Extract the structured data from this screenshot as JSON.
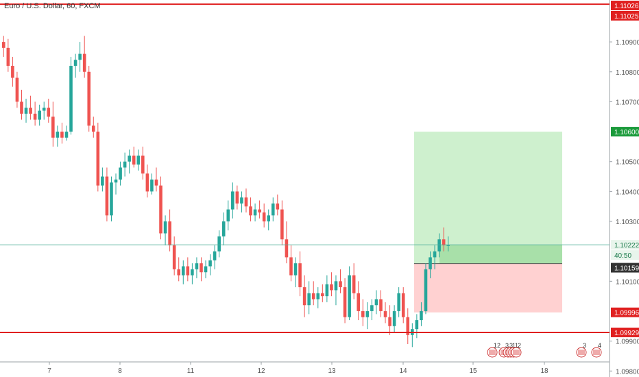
{
  "header": {
    "symbol_title": "Euro / U.S. Dollar, 60, FXCM"
  },
  "colors": {
    "up": "#26a69a",
    "down": "#ef5350",
    "level_line": "#e02020",
    "target_zone": "#c9eec9",
    "target_zone_inner": "#9fdca0",
    "stop_zone": "#ffcccc",
    "price_line": "#4caf9a"
  },
  "chart_data": {
    "type": "candlestick",
    "ylim": [
      1.0978,
      1.1104
    ],
    "y_ticks": [
      "1.10900",
      "1.10800",
      "1.10700",
      "1.10500",
      "1.10400",
      "1.10300",
      "1.10100",
      "1.09900",
      "1.09800"
    ],
    "x_ticks": [
      "7",
      "8",
      "11",
      "12",
      "13",
      "14",
      "15",
      "18"
    ],
    "price_tags": [
      {
        "label": "1.11026",
        "value": 1.11026,
        "kind": "level"
      },
      {
        "label": "1.11025",
        "value": 1.11025,
        "kind": "level"
      },
      {
        "label": "1.10600",
        "value": 1.106,
        "kind": "target"
      },
      {
        "label": "1.10222",
        "value": 1.10222,
        "kind": "last"
      },
      {
        "label": "40:50",
        "value": 1.1019,
        "kind": "countdown"
      },
      {
        "label": "1.10159",
        "value": 1.10159,
        "kind": "entry"
      },
      {
        "label": "1.09996",
        "value": 1.09996,
        "kind": "stop"
      },
      {
        "label": "1.09929",
        "value": 1.09929,
        "kind": "level"
      }
    ],
    "horizontal_levels": [
      1.11026,
      1.09929
    ],
    "position": {
      "entry": 1.10159,
      "target": 1.106,
      "stop": 1.09996
    },
    "event_labels": [
      "12",
      "3",
      "3",
      "1",
      "1",
      "2",
      "3",
      "4"
    ],
    "candles": [
      [
        1.109,
        1.1092,
        1.1085,
        1.1088
      ],
      [
        1.1088,
        1.1091,
        1.108,
        1.1082
      ],
      [
        1.1082,
        1.1085,
        1.1075,
        1.1078
      ],
      [
        1.1078,
        1.108,
        1.1068,
        1.107
      ],
      [
        1.107,
        1.1074,
        1.1064,
        1.1066
      ],
      [
        1.1066,
        1.1071,
        1.1063,
        1.1068
      ],
      [
        1.1068,
        1.1072,
        1.1064,
        1.1066
      ],
      [
        1.1066,
        1.107,
        1.1062,
        1.1064
      ],
      [
        1.1064,
        1.1069,
        1.1062,
        1.1067
      ],
      [
        1.1067,
        1.107,
        1.1064,
        1.1068
      ],
      [
        1.1068,
        1.1071,
        1.1063,
        1.1065
      ],
      [
        1.1065,
        1.107,
        1.1055,
        1.1058
      ],
      [
        1.1058,
        1.1062,
        1.1055,
        1.106
      ],
      [
        1.106,
        1.1063,
        1.1056,
        1.1058
      ],
      [
        1.1058,
        1.1062,
        1.1057,
        1.106
      ],
      [
        1.106,
        1.1085,
        1.1059,
        1.1082
      ],
      [
        1.1082,
        1.1086,
        1.1078,
        1.1084
      ],
      [
        1.1084,
        1.109,
        1.108,
        1.1086
      ],
      [
        1.1086,
        1.1092,
        1.1078,
        1.108
      ],
      [
        1.108,
        1.1082,
        1.106,
        1.1062
      ],
      [
        1.1062,
        1.1065,
        1.1058,
        1.106
      ],
      [
        1.106,
        1.1063,
        1.104,
        1.1042
      ],
      [
        1.1042,
        1.1048,
        1.104,
        1.1045
      ],
      [
        1.1045,
        1.1048,
        1.103,
        1.1032
      ],
      [
        1.1032,
        1.1045,
        1.103,
        1.1043
      ],
      [
        1.1043,
        1.1046,
        1.1039,
        1.1044
      ],
      [
        1.1044,
        1.105,
        1.1042,
        1.1048
      ],
      [
        1.1048,
        1.1053,
        1.1045,
        1.105
      ],
      [
        1.105,
        1.1054,
        1.1046,
        1.1052
      ],
      [
        1.1052,
        1.1055,
        1.1048,
        1.1049
      ],
      [
        1.1049,
        1.1054,
        1.1047,
        1.1052
      ],
      [
        1.1052,
        1.1055,
        1.1044,
        1.1046
      ],
      [
        1.1046,
        1.1049,
        1.1038,
        1.104
      ],
      [
        1.104,
        1.1046,
        1.1039,
        1.1044
      ],
      [
        1.1044,
        1.1048,
        1.104,
        1.1042
      ],
      [
        1.1042,
        1.1045,
        1.1024,
        1.1026
      ],
      [
        1.1026,
        1.1032,
        1.1022,
        1.103
      ],
      [
        1.103,
        1.1034,
        1.102,
        1.1022
      ],
      [
        1.1022,
        1.1025,
        1.1012,
        1.1014
      ],
      [
        1.1014,
        1.1018,
        1.101,
        1.1012
      ],
      [
        1.1012,
        1.1017,
        1.1009,
        1.1015
      ],
      [
        1.1015,
        1.1018,
        1.101,
        1.1012
      ],
      [
        1.1012,
        1.1016,
        1.1009,
        1.1014
      ],
      [
        1.1014,
        1.1018,
        1.1011,
        1.1016
      ],
      [
        1.1016,
        1.1018,
        1.101,
        1.1013
      ],
      [
        1.1013,
        1.1017,
        1.1011,
        1.1015
      ],
      [
        1.1015,
        1.1019,
        1.1012,
        1.1017
      ],
      [
        1.1017,
        1.1022,
        1.1014,
        1.102
      ],
      [
        1.102,
        1.1027,
        1.1018,
        1.1025
      ],
      [
        1.1025,
        1.1033,
        1.1022,
        1.103
      ],
      [
        1.103,
        1.1037,
        1.1027,
        1.1034
      ],
      [
        1.1034,
        1.1043,
        1.1031,
        1.104
      ],
      [
        1.104,
        1.1042,
        1.1034,
        1.1036
      ],
      [
        1.1036,
        1.104,
        1.1033,
        1.1038
      ],
      [
        1.1038,
        1.1041,
        1.1033,
        1.1035
      ],
      [
        1.1035,
        1.1038,
        1.103,
        1.1032
      ],
      [
        1.1032,
        1.1036,
        1.103,
        1.1034
      ],
      [
        1.1034,
        1.1037,
        1.1031,
        1.1033
      ],
      [
        1.1033,
        1.1036,
        1.1028,
        1.103
      ],
      [
        1.103,
        1.1034,
        1.1027,
        1.1032
      ],
      [
        1.1032,
        1.1038,
        1.103,
        1.1036
      ],
      [
        1.1036,
        1.1039,
        1.1032,
        1.1034
      ],
      [
        1.1034,
        1.1037,
        1.1022,
        1.1024
      ],
      [
        1.1024,
        1.103,
        1.1016,
        1.1018
      ],
      [
        1.1018,
        1.1022,
        1.101,
        1.1012
      ],
      [
        1.1012,
        1.1018,
        1.1008,
        1.1016
      ],
      [
        1.1016,
        1.102,
        1.1005,
        1.1008
      ],
      [
        1.1008,
        1.1012,
        1.0998,
        1.1002
      ],
      [
        1.1002,
        1.101,
        1.0999,
        1.1006
      ],
      [
        1.1006,
        1.101,
        1.1002,
        1.1004
      ],
      [
        1.1004,
        1.1008,
        1.1001,
        1.1006
      ],
      [
        1.1006,
        1.1009,
        1.1003,
        1.1005
      ],
      [
        1.1005,
        1.1012,
        1.1003,
        1.1009
      ],
      [
        1.1009,
        1.1013,
        1.1005,
        1.1007
      ],
      [
        1.1007,
        1.1012,
        1.1002,
        1.101
      ],
      [
        1.101,
        1.1014,
        1.1006,
        1.1008
      ],
      [
        1.1008,
        1.1011,
        1.0996,
        1.0998
      ],
      [
        1.0998,
        1.1015,
        1.0997,
        1.1012
      ],
      [
        1.1012,
        1.1016,
        1.1004,
        1.1006
      ],
      [
        1.1006,
        1.101,
        1.0997,
        1.1
      ],
      [
        1.1,
        1.1004,
        1.0995,
        1.0998
      ],
      [
        1.0998,
        1.1003,
        1.0994,
        1.1
      ],
      [
        1.1,
        1.1004,
        1.0997,
        1.1002
      ],
      [
        1.1002,
        1.1007,
        1.0999,
        1.1004
      ],
      [
        1.1004,
        1.1007,
        1.0998,
        1.1
      ],
      [
        1.1,
        1.1003,
        1.0996,
        1.0998
      ],
      [
        1.0998,
        1.1002,
        1.0992,
        1.0995
      ],
      [
        1.0995,
        1.1002,
        1.0993,
        1.1
      ],
      [
        1.1,
        1.1008,
        1.0998,
        1.1006
      ],
      [
        1.1006,
        1.1008,
        1.0996,
        1.0998
      ],
      [
        1.0998,
        1.1001,
        1.0989,
        1.0992
      ],
      [
        1.0992,
        1.0996,
        1.0988,
        1.0994
      ],
      [
        1.0994,
        1.0999,
        1.0991,
        1.0997
      ],
      [
        1.0997,
        1.1003,
        1.0995,
        1.1
      ],
      [
        1.1,
        1.1016,
        1.0999,
        1.1014
      ],
      [
        1.1014,
        1.102,
        1.1011,
        1.1018
      ],
      [
        1.1018,
        1.1022,
        1.1014,
        1.102
      ],
      [
        1.102,
        1.1026,
        1.1018,
        1.1024
      ],
      [
        1.1024,
        1.1028,
        1.102,
        1.1022
      ],
      [
        1.1022,
        1.1025,
        1.102,
        1.1022
      ]
    ]
  }
}
